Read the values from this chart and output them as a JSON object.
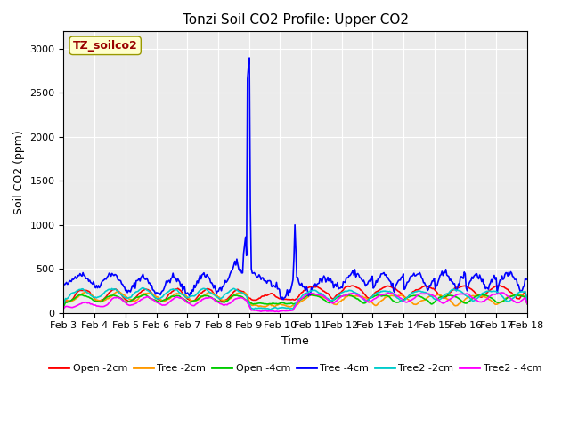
{
  "title": "Tonzi Soil CO2 Profile: Upper CO2",
  "xlabel": "Time",
  "ylabel": "Soil CO2 (ppm)",
  "ylim": [
    0,
    3200
  ],
  "yticks": [
    0,
    500,
    1000,
    1500,
    2000,
    2500,
    3000
  ],
  "figure_bg_color": "#ffffff",
  "plot_bg_color": "#ebebeb",
  "legend_label": "TZ_soilco2",
  "legend_text_color": "#990000",
  "legend_bg_color": "#ffffcc",
  "series": [
    {
      "label": "Open -2cm",
      "color": "#ff0000"
    },
    {
      "label": "Tree -2cm",
      "color": "#ff9900"
    },
    {
      "label": "Open -4cm",
      "color": "#00cc00"
    },
    {
      "label": "Tree -4cm",
      "color": "#0000ff"
    },
    {
      "label": "Tree2 -2cm",
      "color": "#00cccc"
    },
    {
      "label": "Tree2 - 4cm",
      "color": "#ff00ff"
    }
  ],
  "xticklabels": [
    "Feb 3",
    "Feb 4",
    "Feb 5",
    "Feb 6",
    "Feb 7",
    "Feb 8",
    "Feb 9",
    "Feb 10",
    "Feb 11",
    "Feb 12",
    "Feb 13",
    "Feb 14",
    "Feb 15",
    "Feb 16",
    "Feb 17",
    "Feb 18"
  ],
  "n_points": 480
}
